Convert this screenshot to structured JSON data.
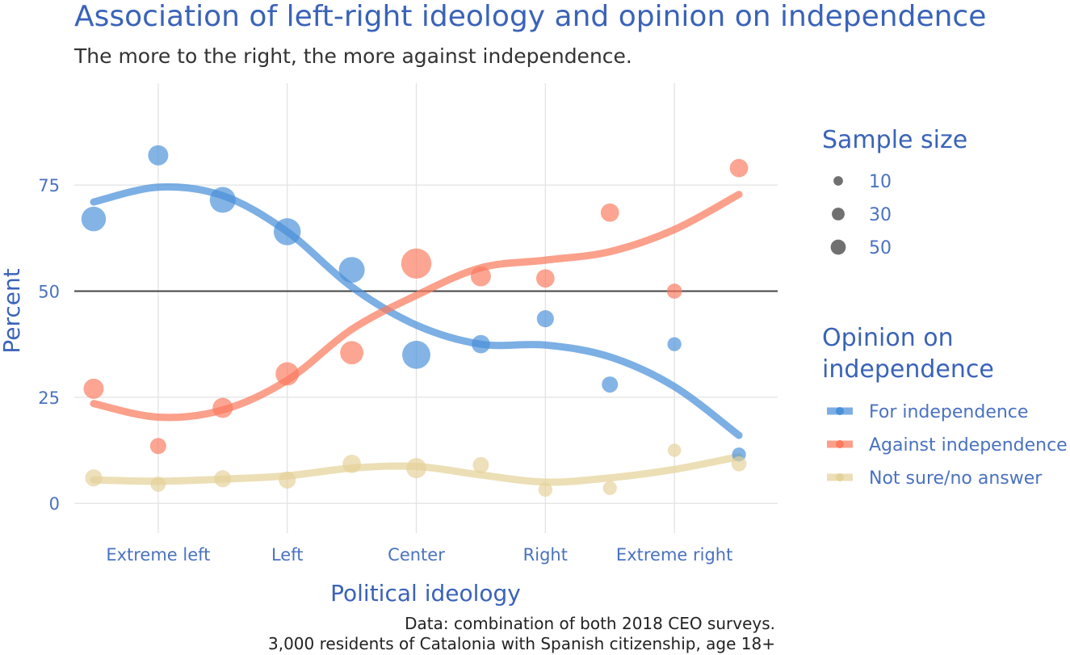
{
  "chart_data": {
    "type": "scatter",
    "title": "Association of left-right ideology and opinion on independence",
    "subtitle": "The more to the right, the more against independence.",
    "xlabel": "Political ideology",
    "ylabel": "Percent",
    "x_ticks": [
      {
        "value": 2,
        "label": "Extreme left"
      },
      {
        "value": 4,
        "label": "Left"
      },
      {
        "value": 6,
        "label": "Center"
      },
      {
        "value": 8,
        "label": "Right"
      },
      {
        "value": 10,
        "label": "Extreme right"
      }
    ],
    "y_ticks": [
      0,
      25,
      50,
      75
    ],
    "xlim": [
      0.7,
      11.6
    ],
    "ylim": [
      -7,
      99
    ],
    "reference_line": 50,
    "grid": true,
    "size_legend": {
      "title": "Sample size",
      "entries": [
        {
          "label": "10",
          "size": 10
        },
        {
          "label": "30",
          "size": 30
        },
        {
          "label": "50",
          "size": 50
        }
      ]
    },
    "color_legend": {
      "title_lines": [
        "Opinion on",
        "independence"
      ],
      "placement": "right"
    },
    "series": [
      {
        "name": "For independence",
        "color": "#4a90d9",
        "points": [
          {
            "x": 1,
            "y": 67,
            "n": 35
          },
          {
            "x": 2,
            "y": 82,
            "n": 20
          },
          {
            "x": 3,
            "y": 71.5,
            "n": 40
          },
          {
            "x": 4,
            "y": 64,
            "n": 45
          },
          {
            "x": 5,
            "y": 55,
            "n": 40
          },
          {
            "x": 6,
            "y": 35,
            "n": 50
          },
          {
            "x": 7,
            "y": 37.5,
            "n": 15
          },
          {
            "x": 8,
            "y": 43.5,
            "n": 12
          },
          {
            "x": 9,
            "y": 28,
            "n": 10
          },
          {
            "x": 10,
            "y": 37.5,
            "n": 6
          },
          {
            "x": 11,
            "y": 11.5,
            "n": 6
          }
        ],
        "trend": [
          {
            "x": 1,
            "y": 71
          },
          {
            "x": 2,
            "y": 74.5
          },
          {
            "x": 3,
            "y": 72.5
          },
          {
            "x": 4,
            "y": 64
          },
          {
            "x": 5,
            "y": 51
          },
          {
            "x": 6,
            "y": 42
          },
          {
            "x": 7,
            "y": 37.5
          },
          {
            "x": 8,
            "y": 37.3
          },
          {
            "x": 9,
            "y": 34.5
          },
          {
            "x": 10,
            "y": 27.5
          },
          {
            "x": 11,
            "y": 16
          }
        ]
      },
      {
        "name": "Against independence",
        "color": "#fa7b5e",
        "points": [
          {
            "x": 1,
            "y": 27,
            "n": 20
          },
          {
            "x": 2,
            "y": 13.5,
            "n": 10
          },
          {
            "x": 3,
            "y": 22.5,
            "n": 20
          },
          {
            "x": 4,
            "y": 30.5,
            "n": 30
          },
          {
            "x": 5,
            "y": 35.5,
            "n": 30
          },
          {
            "x": 6,
            "y": 56.5,
            "n": 60
          },
          {
            "x": 7,
            "y": 53.5,
            "n": 20
          },
          {
            "x": 8,
            "y": 53,
            "n": 15
          },
          {
            "x": 9,
            "y": 68.5,
            "n": 15
          },
          {
            "x": 10,
            "y": 50,
            "n": 8
          },
          {
            "x": 11,
            "y": 79,
            "n": 15
          }
        ],
        "trend": [
          {
            "x": 1,
            "y": 23.5
          },
          {
            "x": 2,
            "y": 20.3
          },
          {
            "x": 3,
            "y": 22
          },
          {
            "x": 4,
            "y": 29
          },
          {
            "x": 5,
            "y": 41
          },
          {
            "x": 6,
            "y": 49
          },
          {
            "x": 7,
            "y": 55.5
          },
          {
            "x": 8,
            "y": 57.3
          },
          {
            "x": 9,
            "y": 59.3
          },
          {
            "x": 10,
            "y": 64.5
          },
          {
            "x": 11,
            "y": 72.8
          }
        ]
      },
      {
        "name": "Not sure/no answer",
        "color": "#e5d29a",
        "points": [
          {
            "x": 1,
            "y": 6,
            "n": 12
          },
          {
            "x": 2,
            "y": 4.5,
            "n": 8
          },
          {
            "x": 3,
            "y": 5.8,
            "n": 12
          },
          {
            "x": 4,
            "y": 5.5,
            "n": 12
          },
          {
            "x": 5,
            "y": 9.3,
            "n": 15
          },
          {
            "x": 6,
            "y": 8.3,
            "n": 20
          },
          {
            "x": 7,
            "y": 9,
            "n": 10
          },
          {
            "x": 8,
            "y": 3.2,
            "n": 6
          },
          {
            "x": 9,
            "y": 3.6,
            "n": 6
          },
          {
            "x": 10,
            "y": 12.5,
            "n": 5
          },
          {
            "x": 11,
            "y": 9.3,
            "n": 8
          }
        ],
        "trend": [
          {
            "x": 1,
            "y": 5.5
          },
          {
            "x": 2,
            "y": 5.2
          },
          {
            "x": 3,
            "y": 5.7
          },
          {
            "x": 4,
            "y": 6.5
          },
          {
            "x": 5,
            "y": 8.3
          },
          {
            "x": 6,
            "y": 8.7
          },
          {
            "x": 7,
            "y": 6.7
          },
          {
            "x": 8,
            "y": 5
          },
          {
            "x": 9,
            "y": 6
          },
          {
            "x": 10,
            "y": 8
          },
          {
            "x": 11,
            "y": 11
          }
        ]
      }
    ],
    "caption_lines": [
      "Data: combination of both 2018 CEO surveys.",
      "3,000 residents of Catalonia with Spanish citizenship, age 18+"
    ]
  }
}
